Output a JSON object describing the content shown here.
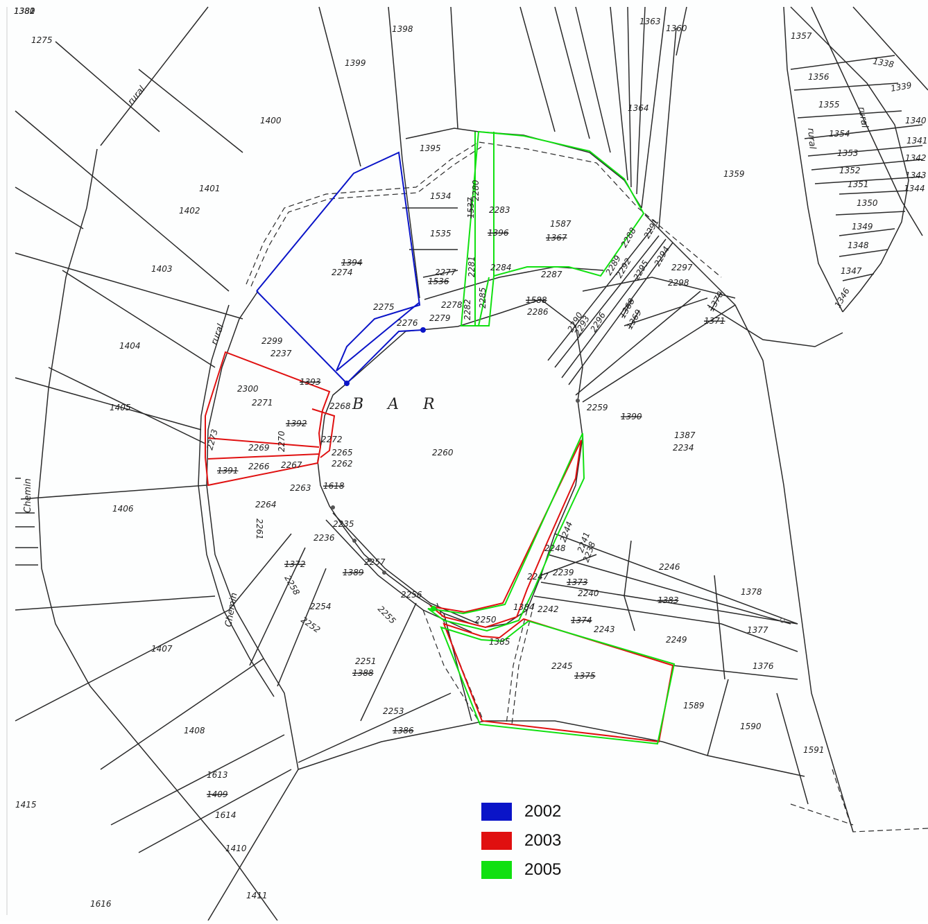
{
  "map": {
    "place_name": "B A R",
    "road_labels": [
      {
        "text": "rural"
      },
      {
        "text": "rural"
      },
      {
        "text": "rural"
      },
      {
        "text": "rural"
      },
      {
        "text": "Chemin"
      },
      {
        "text": "Chemin"
      }
    ],
    "parcels": [
      {
        "id": "1275"
      },
      {
        "id": "1398"
      },
      {
        "id": "1399"
      },
      {
        "id": "1400"
      },
      {
        "id": "1401"
      },
      {
        "id": "1402"
      },
      {
        "id": "1403"
      },
      {
        "id": "1404"
      },
      {
        "id": "1405"
      },
      {
        "id": "1406"
      },
      {
        "id": "1407"
      },
      {
        "id": "1408"
      },
      {
        "id": "1613"
      },
      {
        "id": "1409",
        "struck": true
      },
      {
        "id": "1614"
      },
      {
        "id": "1410"
      },
      {
        "id": "1411"
      },
      {
        "id": "1415"
      },
      {
        "id": "1616"
      },
      {
        "id": "1363"
      },
      {
        "id": "1360"
      },
      {
        "id": "1364"
      },
      {
        "id": "1359"
      },
      {
        "id": "1357"
      },
      {
        "id": "1356"
      },
      {
        "id": "1355"
      },
      {
        "id": "1354"
      },
      {
        "id": "1353"
      },
      {
        "id": "1352"
      },
      {
        "id": "1351"
      },
      {
        "id": "1350"
      },
      {
        "id": "1349"
      },
      {
        "id": "1348"
      },
      {
        "id": "1347"
      },
      {
        "id": "1346"
      },
      {
        "id": "1338"
      },
      {
        "id": "1339"
      },
      {
        "id": "1340"
      },
      {
        "id": "1341"
      },
      {
        "id": "1342"
      },
      {
        "id": "1343"
      },
      {
        "id": "1344"
      },
      {
        "id": "1395"
      },
      {
        "id": "1534"
      },
      {
        "id": "1535"
      },
      {
        "id": "2280"
      },
      {
        "id": "2283"
      },
      {
        "id": "1537",
        "struck": true
      },
      {
        "id": "1396",
        "struck": true
      },
      {
        "id": "1587"
      },
      {
        "id": "1367",
        "struck": true
      },
      {
        "id": "2277"
      },
      {
        "id": "1536",
        "struck": true
      },
      {
        "id": "2281"
      },
      {
        "id": "2284"
      },
      {
        "id": "2287"
      },
      {
        "id": "2288"
      },
      {
        "id": "2289"
      },
      {
        "id": "2291"
      },
      {
        "id": "2292"
      },
      {
        "id": "2294"
      },
      {
        "id": "2295"
      },
      {
        "id": "2297"
      },
      {
        "id": "2298"
      },
      {
        "id": "1394",
        "struck": true
      },
      {
        "id": "2274"
      },
      {
        "id": "2275"
      },
      {
        "id": "2276"
      },
      {
        "id": "2278"
      },
      {
        "id": "2279"
      },
      {
        "id": "2282"
      },
      {
        "id": "2285"
      },
      {
        "id": "1588",
        "struck": true
      },
      {
        "id": "2286"
      },
      {
        "id": "2290"
      },
      {
        "id": "2293"
      },
      {
        "id": "2296"
      },
      {
        "id": "1368",
        "struck": true
      },
      {
        "id": "1369",
        "struck": true
      },
      {
        "id": "1370",
        "struck": true
      },
      {
        "id": "1371",
        "struck": true
      },
      {
        "id": "2299"
      },
      {
        "id": "2237"
      },
      {
        "id": "2300"
      },
      {
        "id": "2271"
      },
      {
        "id": "1393",
        "struck": true
      },
      {
        "id": "2268"
      },
      {
        "id": "1392",
        "struck": true
      },
      {
        "id": "2272"
      },
      {
        "id": "2273"
      },
      {
        "id": "2269"
      },
      {
        "id": "2270"
      },
      {
        "id": "2265"
      },
      {
        "id": "1391",
        "struck": true
      },
      {
        "id": "2266"
      },
      {
        "id": "2267"
      },
      {
        "id": "2262"
      },
      {
        "id": "1618",
        "struck": true
      },
      {
        "id": "2263"
      },
      {
        "id": "2264"
      },
      {
        "id": "2261"
      },
      {
        "id": "2260"
      },
      {
        "id": "2259"
      },
      {
        "id": "1390",
        "struck": true
      },
      {
        "id": "1387"
      },
      {
        "id": "2234"
      },
      {
        "id": "2235"
      },
      {
        "id": "2236"
      },
      {
        "id": "1372",
        "struck": true
      },
      {
        "id": "2258"
      },
      {
        "id": "2257"
      },
      {
        "id": "1389",
        "struck": true
      },
      {
        "id": "2256"
      },
      {
        "id": "2255"
      },
      {
        "id": "2254"
      },
      {
        "id": "2252"
      },
      {
        "id": "2251"
      },
      {
        "id": "1388",
        "struck": true
      },
      {
        "id": "2253"
      },
      {
        "id": "1386",
        "struck": true
      },
      {
        "id": "2250"
      },
      {
        "id": "1385"
      },
      {
        "id": "1384"
      },
      {
        "id": "2247"
      },
      {
        "id": "2248"
      },
      {
        "id": "2244"
      },
      {
        "id": "2241"
      },
      {
        "id": "2238"
      },
      {
        "id": "2239"
      },
      {
        "id": "1373",
        "struck": true
      },
      {
        "id": "2240"
      },
      {
        "id": "2242"
      },
      {
        "id": "1374",
        "struck": true
      },
      {
        "id": "2243"
      },
      {
        "id": "2245"
      },
      {
        "id": "1375",
        "struck": true
      },
      {
        "id": "2246"
      },
      {
        "id": "1383",
        "struck": true
      },
      {
        "id": "2249"
      },
      {
        "id": "1378"
      },
      {
        "id": "1377"
      },
      {
        "id": "1376"
      },
      {
        "id": "1589"
      },
      {
        "id": "1590"
      },
      {
        "id": "1591"
      },
      {
        "id": "1382"
      },
      {
        "id": "1381"
      },
      {
        "id": "1380"
      }
    ]
  },
  "legend": {
    "items": [
      {
        "label": "2002",
        "color": "#0a14c8"
      },
      {
        "label": "2003",
        "color": "#e01010"
      },
      {
        "label": "2005",
        "color": "#10e010"
      }
    ]
  },
  "colors": {
    "line": "#2a2a2a",
    "blue": "#0a14c8",
    "red": "#e01010",
    "green": "#10e010"
  }
}
